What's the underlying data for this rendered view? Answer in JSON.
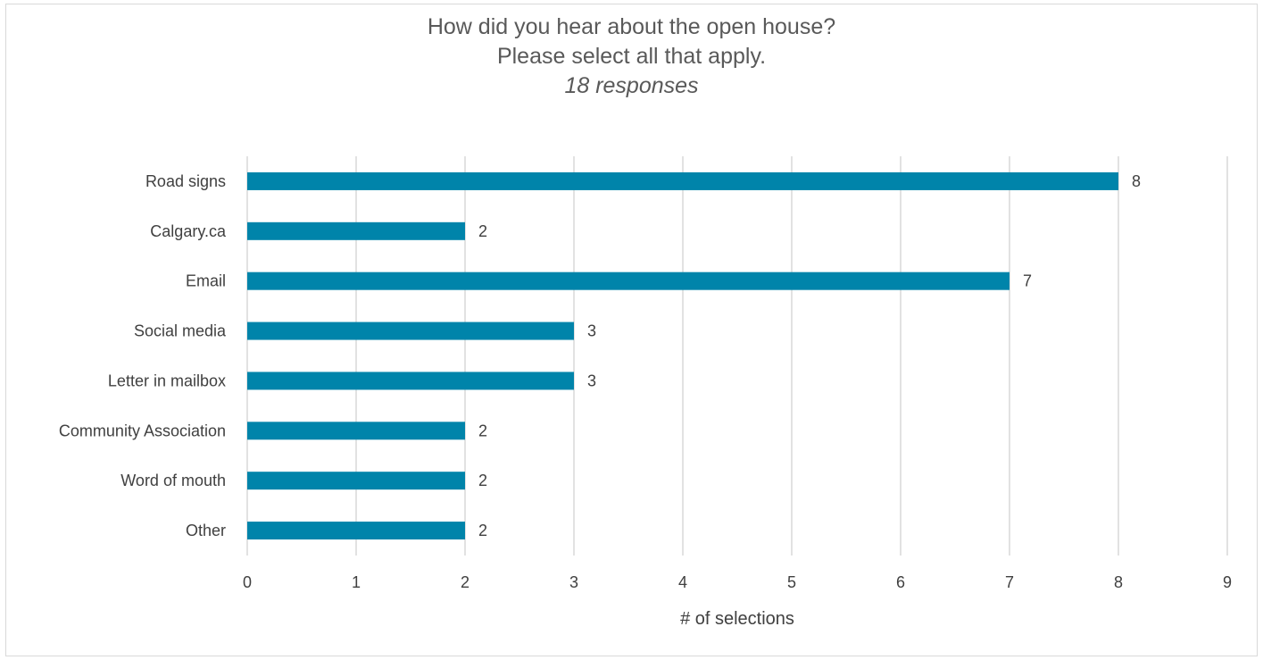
{
  "chart_data": {
    "type": "bar",
    "orientation": "horizontal",
    "title": "How did you hear about the open house?",
    "title_line2": "Please select all that apply.",
    "subtitle": "18 responses",
    "xlabel": "# of selections",
    "ylabel": "",
    "xlim": [
      0,
      9
    ],
    "xticks": [
      0,
      1,
      2,
      3,
      4,
      5,
      6,
      7,
      8,
      9
    ],
    "grid": true,
    "bar_color": "#0084aa",
    "categories": [
      "Road signs",
      "Calgary.ca",
      "Email",
      "Social media",
      "Letter in mailbox",
      "Community Association",
      "Word of mouth",
      "Other"
    ],
    "values": [
      8,
      2,
      7,
      3,
      3,
      2,
      2,
      2
    ]
  }
}
